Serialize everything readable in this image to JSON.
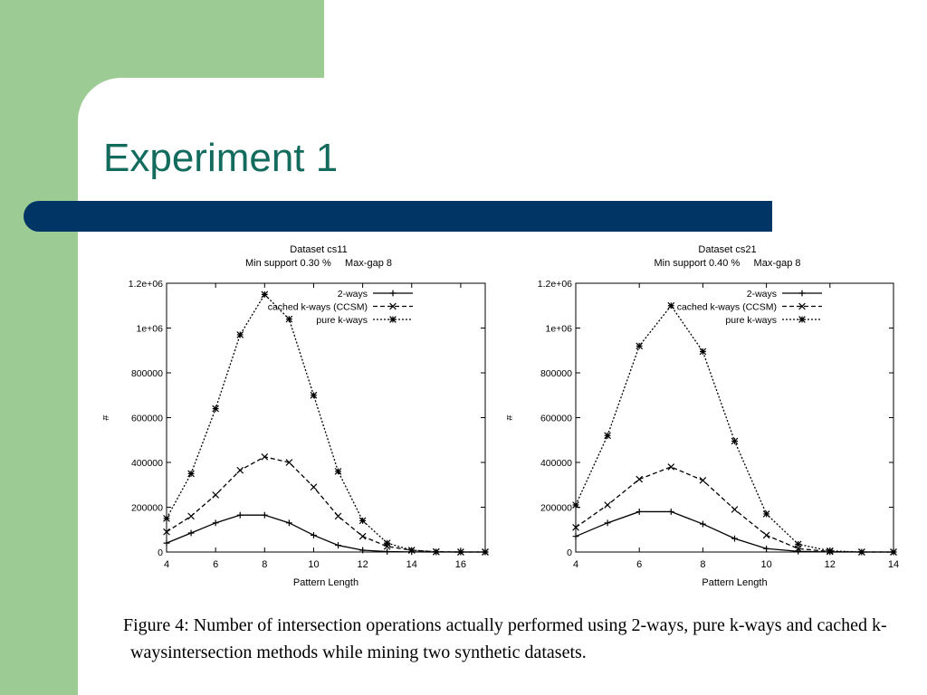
{
  "slide": {
    "title": "Experiment 1",
    "caption": "Figure 4: Number of intersection operations actually performed using 2-ways, pure k-ways and cached k-waysintersection methods while mining two synthetic datasets.",
    "colors": {
      "green": "#9ccb94",
      "title_text": "#136b5e",
      "bar": "#003566"
    }
  },
  "chart_data": [
    {
      "type": "line",
      "title": "Dataset cs11",
      "subtitle": "Min support 0.30 %     Max-gap 8",
      "xlabel": "Pattern Length",
      "ylabel": "#",
      "xlim": [
        4,
        17
      ],
      "ylim": [
        0,
        1200000
      ],
      "xticks": [
        4,
        6,
        8,
        10,
        12,
        14,
        16
      ],
      "yticks": [
        0,
        200000,
        400000,
        600000,
        800000,
        1000000,
        1200000
      ],
      "ytick_labels": [
        "0",
        "200000",
        "400000",
        "600000",
        "800000",
        "1e+06",
        "1.2e+06"
      ],
      "legend": "top-right",
      "grid": false,
      "series": [
        {
          "name": "2-ways",
          "marker": "plus",
          "dash": "solid",
          "x": [
            4,
            5,
            6,
            7,
            8,
            9,
            10,
            11,
            12,
            13,
            14,
            15,
            16,
            17
          ],
          "y": [
            40000,
            85000,
            130000,
            165000,
            165000,
            130000,
            75000,
            30000,
            8000,
            2000,
            500,
            0,
            0,
            0
          ]
        },
        {
          "name": "cached k-ways (CCSM)",
          "marker": "cross",
          "dash": "dashed",
          "x": [
            4,
            5,
            6,
            7,
            8,
            9,
            10,
            11,
            12,
            13,
            14,
            15,
            16,
            17
          ],
          "y": [
            90000,
            160000,
            255000,
            365000,
            425000,
            400000,
            290000,
            160000,
            70000,
            25000,
            8000,
            1000,
            0,
            0
          ]
        },
        {
          "name": "pure k-ways",
          "marker": "star",
          "dash": "dotted",
          "x": [
            4,
            5,
            6,
            7,
            8,
            9,
            10,
            11,
            12,
            13,
            14,
            15,
            16,
            17
          ],
          "y": [
            150000,
            350000,
            640000,
            970000,
            1150000,
            1040000,
            700000,
            360000,
            140000,
            40000,
            8000,
            1000,
            0,
            0
          ]
        }
      ]
    },
    {
      "type": "line",
      "title": "Dataset cs21",
      "subtitle": "Min support 0.40 %     Max-gap 8",
      "xlabel": "Pattern Length",
      "ylabel": "#",
      "xlim": [
        4,
        14
      ],
      "ylim": [
        0,
        1200000
      ],
      "xticks": [
        4,
        6,
        8,
        10,
        12,
        14
      ],
      "yticks": [
        0,
        200000,
        400000,
        600000,
        800000,
        1000000,
        1200000
      ],
      "ytick_labels": [
        "0",
        "200000",
        "400000",
        "600000",
        "800000",
        "1e+06",
        "1.2e+06"
      ],
      "legend": "top-right",
      "grid": false,
      "series": [
        {
          "name": "2-ways",
          "marker": "plus",
          "dash": "solid",
          "x": [
            4,
            5,
            6,
            7,
            8,
            9,
            10,
            11,
            12,
            13,
            14
          ],
          "y": [
            70000,
            130000,
            180000,
            180000,
            125000,
            60000,
            15000,
            3000,
            0,
            0,
            0
          ]
        },
        {
          "name": "cached k-ways (CCSM)",
          "marker": "cross",
          "dash": "dashed",
          "x": [
            4,
            5,
            6,
            7,
            8,
            9,
            10,
            11,
            12,
            13,
            14
          ],
          "y": [
            110000,
            210000,
            325000,
            380000,
            320000,
            190000,
            75000,
            15000,
            2000,
            0,
            0
          ]
        },
        {
          "name": "pure k-ways",
          "marker": "star",
          "dash": "dotted",
          "x": [
            4,
            5,
            6,
            7,
            8,
            9,
            10,
            11,
            12,
            13,
            14
          ],
          "y": [
            210000,
            520000,
            920000,
            1100000,
            895000,
            495000,
            170000,
            35000,
            5000,
            0,
            0
          ]
        }
      ]
    }
  ]
}
